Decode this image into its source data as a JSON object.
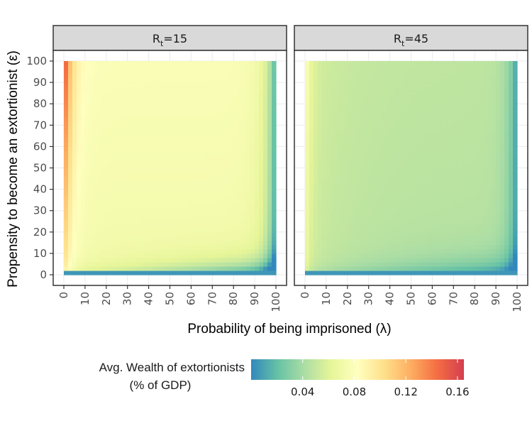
{
  "chart_data": {
    "type": "heatmap",
    "xlabel": "Probability of being imprisoned (λ)",
    "ylabel": "Propensity to become an extortionist (ε)",
    "x_ticks": [
      0,
      10,
      20,
      30,
      40,
      50,
      60,
      70,
      80,
      90,
      100
    ],
    "y_ticks": [
      0,
      10,
      20,
      30,
      40,
      50,
      60,
      70,
      80,
      90,
      100
    ],
    "xlim": [
      0,
      100
    ],
    "ylim": [
      0,
      100
    ],
    "panels": [
      {
        "label_main": "R",
        "label_sub": "t",
        "label_rest": "=15",
        "Rt": 15
      },
      {
        "label_main": "R",
        "label_sub": "t",
        "label_rest": "=45",
        "Rt": 45
      }
    ],
    "legend": {
      "title_line1": "Avg. Wealth of extortionists",
      "title_line2": "(% of GDP)",
      "ticks": [
        0.04,
        0.08,
        0.12,
        0.16
      ],
      "tick_labels": [
        "0.04",
        "0.08",
        "0.12",
        "0.16"
      ],
      "range": [
        0.0,
        0.165
      ],
      "colors": [
        "#3288bd",
        "#66c2a5",
        "#abdda4",
        "#e6f598",
        "#ffffbf",
        "#fee08b",
        "#fdae61",
        "#f46d43",
        "#d53e4f"
      ]
    }
  }
}
